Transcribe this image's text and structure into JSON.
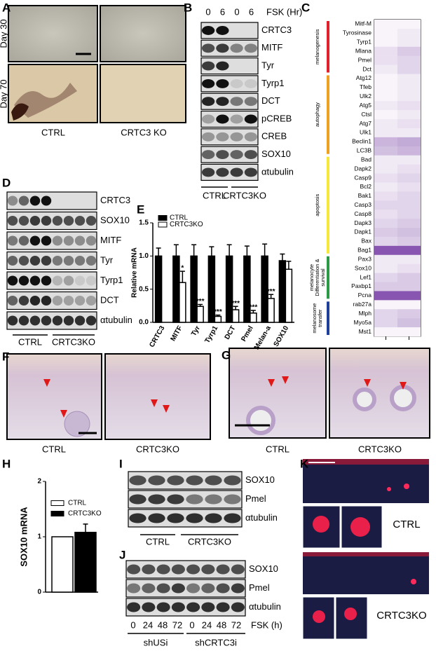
{
  "figure": {
    "A": {
      "label": "A",
      "row_labels": [
        "Day 30",
        "Day 70"
      ],
      "column_labels": [
        "CTRL",
        "CRTC3 KO"
      ]
    },
    "B": {
      "label": "B",
      "lanes": [
        "0",
        "6",
        "0",
        "6"
      ],
      "treatment": "FSK (Hr)",
      "rows": [
        "CRTC3",
        "MITF",
        "Tyr",
        "Tyrp1",
        "DCT",
        "pCREB",
        "CREB",
        "SOX10",
        "αtubulin"
      ],
      "groups": [
        "CTRL",
        "CRTC3KO"
      ]
    },
    "C": {
      "label": "C"
    },
    "D": {
      "label": "D",
      "rows": [
        "CRTC3",
        "SOX10",
        "MITF",
        "Tyr",
        "Tyrp1",
        "DCT",
        "αtubulin"
      ],
      "groups": [
        "CTRL",
        "CRTC3KO"
      ]
    },
    "E": {
      "label": "E"
    },
    "F": {
      "label": "F",
      "column_labels": [
        "CTRL",
        "CRTC3KO"
      ]
    },
    "G": {
      "label": "G",
      "column_labels": [
        "CTRL",
        "CRTC3KO"
      ]
    },
    "H": {
      "label": "H"
    },
    "I": {
      "label": "I",
      "rows": [
        "SOX10",
        "Pmel",
        "αtubulin"
      ],
      "groups": [
        "CTRL",
        "CRTC3KO"
      ]
    },
    "J": {
      "label": "J",
      "rows": [
        "SOX10",
        "Pmel",
        "αtubulin"
      ],
      "lanes": [
        "0",
        "24",
        "48",
        "72",
        "0",
        "24",
        "48",
        "72"
      ],
      "treatment": "FSK (h)",
      "groups": [
        "shUSi",
        "shCRTC3i"
      ]
    },
    "K": {
      "label": "K",
      "row_labels": [
        "CTRL",
        "CRTC3KO"
      ]
    }
  },
  "chart_data": [
    {
      "type": "heatmap",
      "color": "#6a2c9c",
      "groups": [
        {
          "name": "melanogenesis",
          "color": "#e0202a",
          "rows": [
            "Mitf-M",
            "Tyrosinase",
            "Tyrp1",
            "Mlana",
            "Pmel",
            "Dct"
          ],
          "values": [
            [
              0.05,
              0.05
            ],
            [
              0.05,
              0.1
            ],
            [
              0.05,
              0.1
            ],
            [
              0.15,
              0.25
            ],
            [
              0.15,
              0.2
            ],
            [
              0.1,
              0.2
            ]
          ]
        },
        {
          "name": "autophagy",
          "color": "#f0a020",
          "rows": [
            "Atg12",
            "Tfeb",
            "Ulk2",
            "Atg5",
            "Ctsl",
            "Atg7",
            "Ulk1",
            "Beclin1",
            "LC3B"
          ],
          "values": [
            [
              0.05,
              0.1
            ],
            [
              0.05,
              0.1
            ],
            [
              0.05,
              0.1
            ],
            [
              0.1,
              0.15
            ],
            [
              0.05,
              0.1
            ],
            [
              0.1,
              0.15
            ],
            [
              0.1,
              0.1
            ],
            [
              0.35,
              0.4
            ],
            [
              0.3,
              0.35
            ]
          ]
        },
        {
          "name": "apoptosis",
          "color": "#f5e83a",
          "rows": [
            "Bad",
            "Dapk2",
            "Casp9",
            "Bcl2",
            "Bak1",
            "Casp3",
            "Casp8",
            "Dapk3",
            "Dapk1",
            "Bax",
            "Bag1"
          ],
          "values": [
            [
              0.1,
              0.1
            ],
            [
              0.1,
              0.15
            ],
            [
              0.15,
              0.2
            ],
            [
              0.1,
              0.15
            ],
            [
              0.15,
              0.2
            ],
            [
              0.2,
              0.2
            ],
            [
              0.15,
              0.2
            ],
            [
              0.2,
              0.25
            ],
            [
              0.25,
              0.3
            ],
            [
              0.2,
              0.25
            ],
            [
              0.8,
              0.8
            ]
          ]
        },
        {
          "name": "melanocyte Differentiation & survival",
          "color": "#2a9a48",
          "rows": [
            "Pax3",
            "Sox10",
            "Lef1",
            "Paxbp1",
            "Pcna"
          ],
          "values": [
            [
              0.1,
              0.1
            ],
            [
              0.1,
              0.15
            ],
            [
              0.2,
              0.25
            ],
            [
              0.25,
              0.25
            ],
            [
              0.8,
              0.8
            ]
          ]
        },
        {
          "name": "melanosome transfer",
          "color": "#1f3f9a",
          "rows": [
            "rab27a",
            "Mlph",
            "Myo5a",
            "Mst1"
          ],
          "values": [
            [
              0.05,
              0.05
            ],
            [
              0.2,
              0.25
            ],
            [
              0.2,
              0.3
            ],
            [
              0.05,
              0.05
            ]
          ]
        }
      ]
    },
    {
      "type": "bar",
      "ylabel": "Relative mRNA",
      "legend": "upper left",
      "categories": [
        "CRTC3",
        "MITF",
        "Tyr",
        "Tyrp1",
        "DCT",
        "Pmel",
        "Melan-a",
        "SOX10"
      ],
      "ylim": [
        0,
        1.5
      ],
      "yticks": [
        {
          "value": 0,
          "label": "0.0"
        },
        0.5,
        {
          "value": 1,
          "label": "1.0"
        },
        1.5
      ],
      "series": [
        {
          "name": "CTRL",
          "color": "#000000",
          "values": [
            1,
            1,
            1,
            1,
            1,
            1,
            1,
            0.93
          ],
          "errors": [
            0.12,
            0.17,
            0.17,
            0.14,
            0.17,
            0.15,
            0.18,
            0.1
          ]
        },
        {
          "name": "CRTC3KO",
          "color": "#ffffff",
          "values": [
            null,
            0.6,
            0.24,
            0.09,
            0.19,
            0.14,
            0.36,
            0.8
          ],
          "errors": [
            null,
            0.17,
            0.03,
            0.02,
            0.05,
            0.04,
            0.06,
            0.12
          ],
          "significance": [
            null,
            "*",
            "***",
            "***",
            "***",
            "***",
            "***",
            null
          ]
        }
      ]
    },
    {
      "type": "bar",
      "ylabel": "SOX10 mRNA",
      "legend": "upper left",
      "categories": [
        null
      ],
      "ylim": [
        0,
        2
      ],
      "yticks": [
        0,
        1,
        2
      ],
      "series": [
        {
          "name": "CTRL",
          "color": "#ffffff",
          "values": [
            1.0
          ]
        },
        {
          "name": "CRTC3KO",
          "color": "#000000",
          "values": [
            1.08
          ],
          "errors": [
            0.15
          ]
        }
      ]
    }
  ]
}
